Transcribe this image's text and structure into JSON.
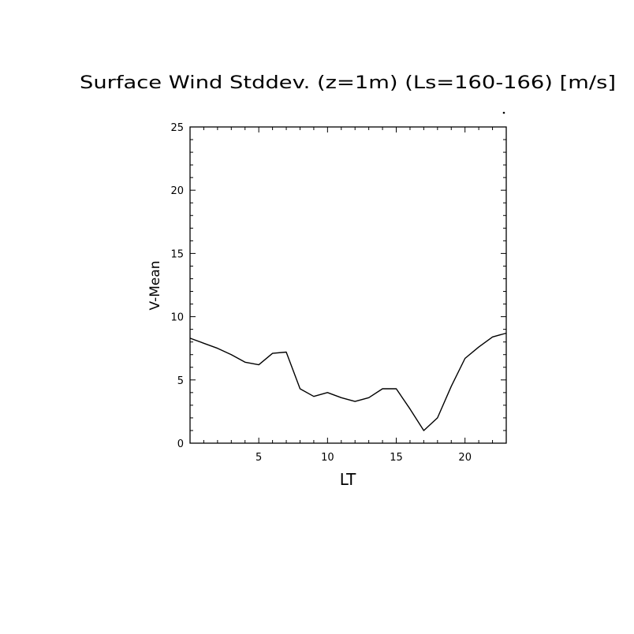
{
  "chart_data": {
    "type": "line",
    "title": "Surface Wind Stddev. (z=1m) (Ls=160-166) [m/s]",
    "xlabel": "LT",
    "ylabel": "V-Mean",
    "xlim": [
      0,
      23
    ],
    "ylim": [
      0,
      25
    ],
    "xticks": [
      5,
      10,
      15,
      20
    ],
    "yticks": [
      0,
      5,
      10,
      15,
      20,
      25
    ],
    "grid": false,
    "series": [
      {
        "x": [
          0,
          1,
          2,
          3,
          4,
          5,
          6,
          7,
          8,
          9,
          10,
          11,
          12,
          13,
          14,
          15,
          16,
          17,
          18,
          19,
          20,
          21,
          22,
          23
        ],
        "y": [
          8.3,
          7.9,
          7.5,
          7.0,
          6.4,
          6.2,
          7.1,
          7.2,
          4.3,
          3.7,
          4.0,
          3.6,
          3.3,
          3.6,
          4.3,
          4.3,
          2.7,
          1.0,
          2.0,
          4.5,
          6.7,
          7.6,
          8.4,
          8.7
        ],
        "color": "#000000"
      }
    ]
  }
}
